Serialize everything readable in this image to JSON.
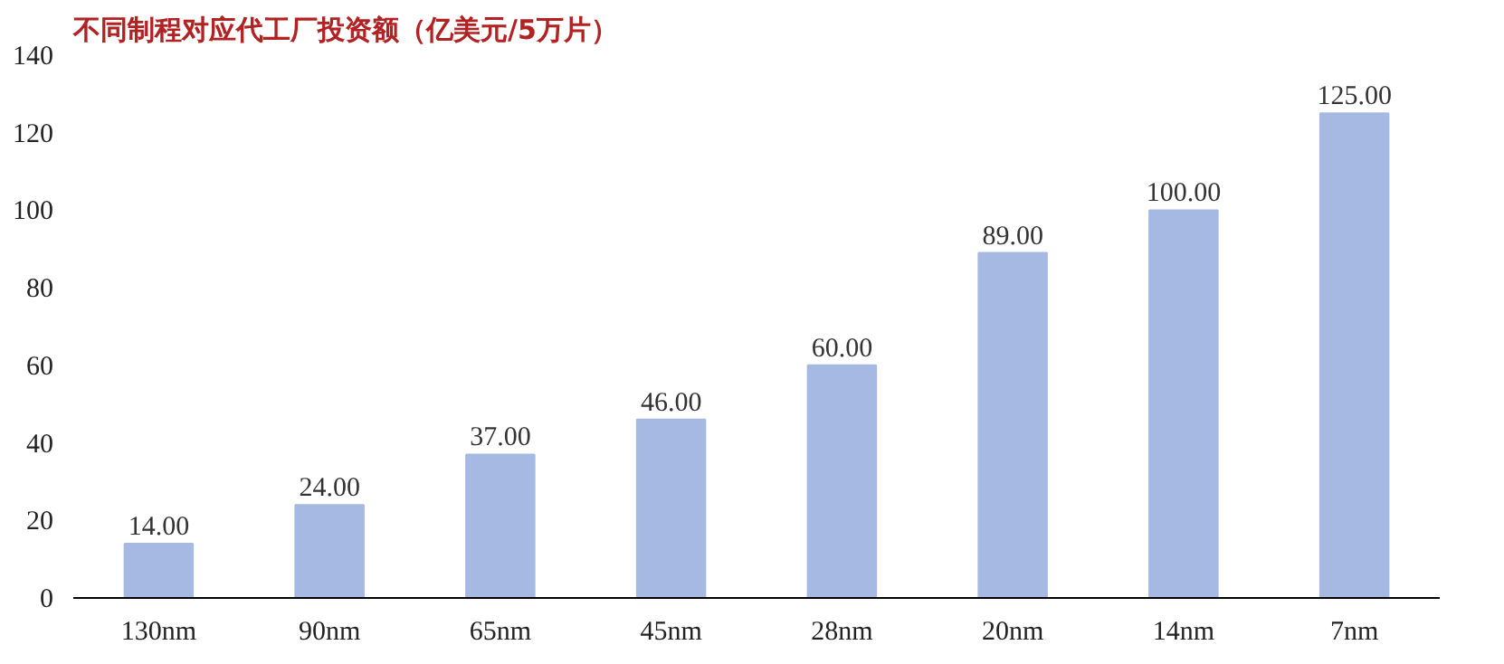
{
  "chart_data": {
    "type": "bar",
    "title": "不同制程对应代工厂投资额（亿美元/5万片）",
    "categories": [
      "130nm",
      "90nm",
      "65nm",
      "45nm",
      "28nm",
      "20nm",
      "14nm",
      "7nm"
    ],
    "values": [
      14,
      24,
      37,
      46,
      60,
      89,
      100,
      125
    ],
    "value_labels": [
      "14.00",
      "24.00",
      "37.00",
      "46.00",
      "60.00",
      "89.00",
      "100.00",
      "125.00"
    ],
    "color": "#a5b9e3",
    "ylim": [
      0,
      140
    ],
    "yticks": [
      0,
      20,
      40,
      60,
      80,
      100,
      120,
      140
    ],
    "grid": false
  }
}
